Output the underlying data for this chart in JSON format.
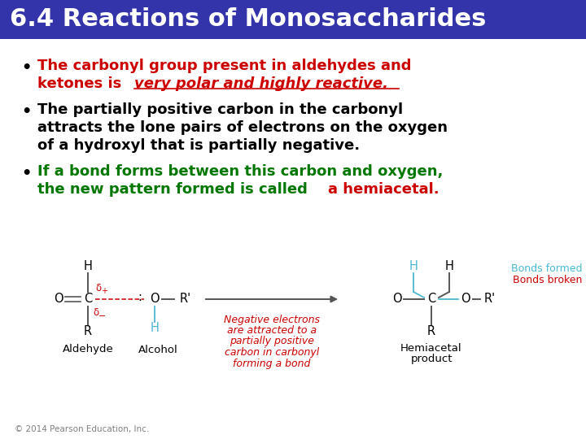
{
  "title": "6.4 Reactions of Monosaccharides",
  "title_bg": "#3333aa",
  "title_color": "#ffffff",
  "title_fontsize": 22,
  "bullet1_line1": "The carbonyl group present in aldehydes and",
  "bullet1_line2_before": "ketones is ",
  "bullet1_line2_italic": "very polar and highly reactive",
  "bullet1_line2_after": ".",
  "bullet1_color": "#cc0000",
  "bullet2_line1": "The partially positive carbon in the carbonyl",
  "bullet2_line2": "attracts the lone pairs of electrons on the oxygen",
  "bullet2_line3": "of a hydroxyl that is partially negative.",
  "bullet2_color": "#000000",
  "bullet3_line1": "If a bond forms between this carbon and oxygen,",
  "bullet3_line2_before": "the new pattern formed is called ",
  "bullet3_line2_red": "a hemiacetal",
  "bullet3_line2_after": ".",
  "bullet3_color": "#007700",
  "bullet3_red_color": "#cc0000",
  "copyright": "© 2014 Pearson Education, Inc.",
  "bonds_formed_color": "#4db8d4",
  "bonds_broken_color": "#cc0000",
  "diag_color": "#555555",
  "red_c": "#cc0000",
  "blue_c": "#4db8d4",
  "black_c": "#000000",
  "gray_c": "#888888"
}
